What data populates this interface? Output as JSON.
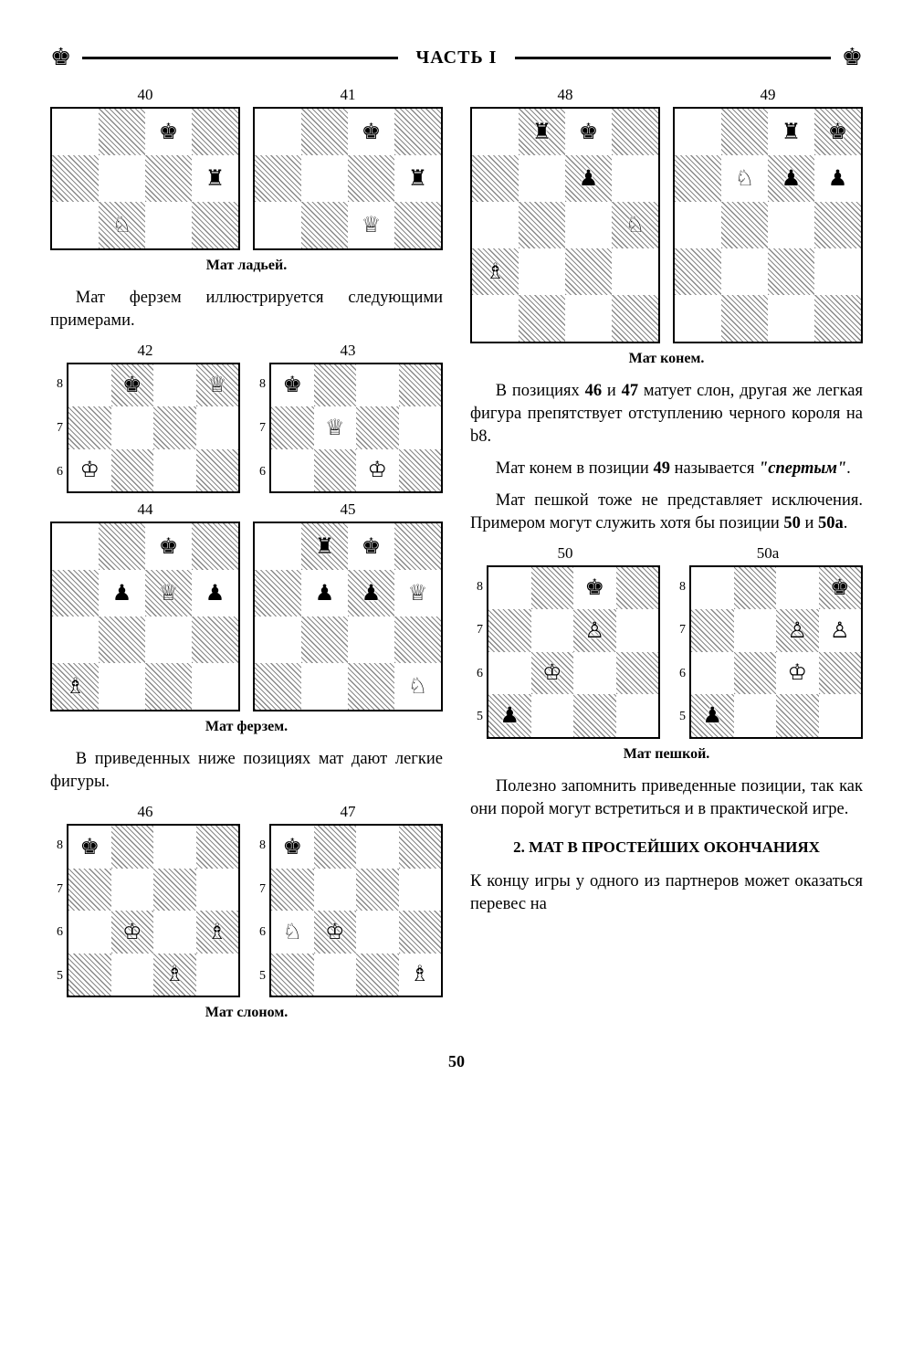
{
  "header": {
    "title": "ЧАСТЬ I"
  },
  "pageNumber": "50",
  "captions": {
    "rook": "Мат ладьей.",
    "queen": "Мат ферзем.",
    "bishop": "Мат слоном.",
    "knight": "Мат конем.",
    "pawn": "Мат пешкой."
  },
  "text": {
    "p1": "Мат ферзем иллюстрируется следующими примерами.",
    "p2": "В приведенных ниже позици­ях мат дают легкие фигуры.",
    "p3a": "В позициях ",
    "p3b": " и ",
    "p3c": " матует слон, другая же легкая фигура препятствует отступлению чер­ного короля на b8.",
    "p3n1": "46",
    "p3n2": "47",
    "p4a": "Мат конем в позиции ",
    "p4b": " назы­вается ",
    "p4c": ".",
    "p4n": "49",
    "p4i": "\"спертым\"",
    "p5a": "Мат пешкой тоже не представ­ляет исключения. Примером мо­гут служить хотя бы позиции ",
    "p5b": " и ",
    "p5c": ".",
    "p5n1": "50",
    "p5n2": "50а",
    "p6": "Полезно запомнить приведен­ные позиции, так как они порой могут встретиться и в практичес­кой игре.",
    "sec": "2. МАТ В ПРОСТЕЙШИХ ОКОНЧАНИЯХ",
    "p7": "К концу игры у одного из партне­ров может оказаться перевес на"
  },
  "diagrams": {
    "d40": {
      "num": "40",
      "cols": 4,
      "rows": 3,
      "startFile": 4,
      "startRank": 8,
      "showRanks": false,
      "pieces": {
        "7,8": "♚",
        "8,7": "♜",
        "6,6": "♘"
      }
    },
    "d41": {
      "num": "41",
      "cols": 4,
      "rows": 3,
      "startFile": 4,
      "startRank": 8,
      "showRanks": false,
      "pieces": {
        "7,8": "♚",
        "8,7": "♜",
        "7,6": "♕"
      }
    },
    "d42": {
      "num": "42",
      "cols": 4,
      "rows": 3,
      "startFile": 0,
      "startRank": 8,
      "showRanks": true,
      "pieces": {
        "2,8": "♚",
        "4,8": "♕",
        "1,6": "♔"
      }
    },
    "d43": {
      "num": "43",
      "cols": 4,
      "rows": 3,
      "startFile": 0,
      "startRank": 8,
      "showRanks": true,
      "pieces": {
        "1,8": "♚",
        "2,7": "♕",
        "3,6": "♔"
      }
    },
    "d44": {
      "num": "44",
      "cols": 4,
      "rows": 4,
      "startFile": 0,
      "startRank": 8,
      "showRanks": false,
      "pieces": {
        "3,8": "♚",
        "2,7": "♟",
        "3,7": "♕",
        "4,7": "♟",
        "1,5": "♗"
      }
    },
    "d45": {
      "num": "45",
      "cols": 4,
      "rows": 4,
      "startFile": 0,
      "startRank": 8,
      "showRanks": false,
      "pieces": {
        "2,8": "♜",
        "3,8": "♚",
        "2,7": "♟",
        "3,7": "♟",
        "4,7": "♕",
        "4,5": "♘"
      }
    },
    "d46": {
      "num": "46",
      "cols": 4,
      "rows": 4,
      "startFile": 0,
      "startRank": 8,
      "showRanks": true,
      "pieces": {
        "1,8": "♚",
        "2,6": "♔",
        "4,6": "♗",
        "3,5": "♗"
      }
    },
    "d47": {
      "num": "47",
      "cols": 4,
      "rows": 4,
      "startFile": 0,
      "startRank": 8,
      "showRanks": true,
      "pieces": {
        "1,8": "♚",
        "1,6": "♘",
        "2,6": "♔",
        "4,5": "♗"
      }
    },
    "d48": {
      "num": "48",
      "cols": 4,
      "rows": 5,
      "startFile": 4,
      "startRank": 8,
      "showRanks": false,
      "pieces": {
        "6,8": "♜",
        "7,8": "♚",
        "7,7": "♟",
        "8,6": "♘",
        "5,5": "♗"
      }
    },
    "d49": {
      "num": "49",
      "cols": 4,
      "rows": 5,
      "startFile": 4,
      "startRank": 8,
      "showRanks": false,
      "pieces": {
        "7,8": "♜",
        "8,8": "♚",
        "6,7": "♘",
        "7,7": "♟",
        "8,7": "♟"
      }
    },
    "d50": {
      "num": "50",
      "cols": 4,
      "rows": 4,
      "startFile": 0,
      "startRank": 8,
      "showRanks": true,
      "pieces": {
        "3,8": "♚",
        "3,7": "♙",
        "2,6": "♔",
        "1,5": "♟"
      }
    },
    "d50a": {
      "num": "50а",
      "cols": 4,
      "rows": 4,
      "startFile": 0,
      "startRank": 8,
      "showRanks": true,
      "pieces": {
        "4,8": "♚",
        "3,7": "♙",
        "4,7": "♙",
        "3,6": "♔",
        "1,5": "♟"
      }
    }
  }
}
